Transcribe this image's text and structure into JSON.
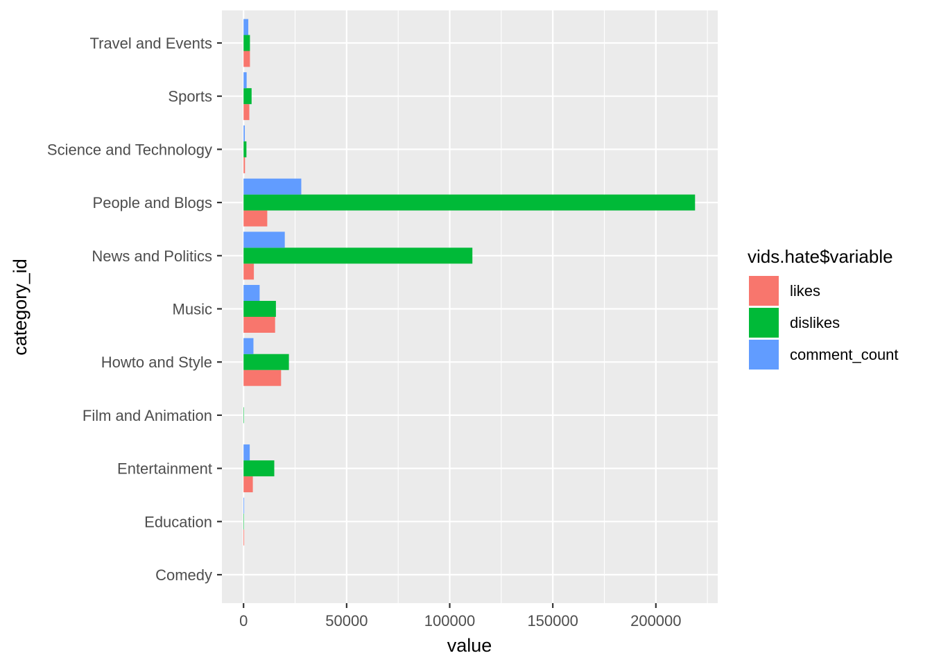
{
  "chart_data": {
    "type": "bar",
    "orientation": "horizontal",
    "xlabel": "value",
    "ylabel": "category_id",
    "xlim": [
      -10500,
      230000
    ],
    "x_ticks": [
      0,
      50000,
      100000,
      150000,
      200000
    ],
    "x_tick_labels": [
      "0",
      "50000",
      "100000",
      "150000",
      "200000"
    ],
    "grid": true,
    "legend": {
      "title": "vids.hate$variable",
      "placement": "right"
    },
    "categories": [
      "Comedy",
      "Education",
      "Entertainment",
      "Film and Animation",
      "Howto and Style",
      "Music",
      "News and Politics",
      "People and Blogs",
      "Science and Technology",
      "Sports",
      "Travel and Events"
    ],
    "series": [
      {
        "name": "likes",
        "color": "#F8766D",
        "values": [
          0,
          300,
          4500,
          0,
          18200,
          15300,
          5000,
          11500,
          700,
          2800,
          3100
        ]
      },
      {
        "name": "dislikes",
        "color": "#00BA38",
        "values": [
          0,
          200,
          14900,
          200,
          22000,
          15700,
          111000,
          219000,
          1400,
          3900,
          3100
        ]
      },
      {
        "name": "comment_count",
        "color": "#619CFF",
        "values": [
          0,
          300,
          3000,
          0,
          4800,
          7800,
          20000,
          28000,
          600,
          1500,
          2300
        ]
      }
    ]
  }
}
